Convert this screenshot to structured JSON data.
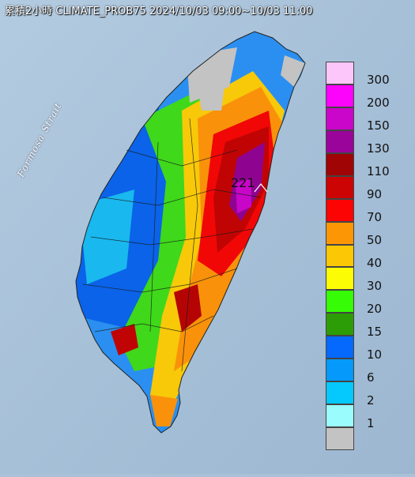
{
  "title": "累積2小時 CLIMATE_PROB75 2024/10/03 09:00~10/03 11:00",
  "strait_label": "Formosa Strait",
  "peak_value": "221",
  "legend": [
    {
      "label": "300",
      "color": "#fdc6fb"
    },
    {
      "label": "200",
      "color": "#fc04fb"
    },
    {
      "label": "150",
      "color": "#c906c9"
    },
    {
      "label": "130",
      "color": "#9a049a"
    },
    {
      "label": "110",
      "color": "#a00404"
    },
    {
      "label": "90",
      "color": "#cc0404"
    },
    {
      "label": "70",
      "color": "#fc0404"
    },
    {
      "label": "50",
      "color": "#fc9605"
    },
    {
      "label": "40",
      "color": "#fcc705"
    },
    {
      "label": "30",
      "color": "#fcfc05"
    },
    {
      "label": "20",
      "color": "#36fc05"
    },
    {
      "label": "15",
      "color": "#2d9d07"
    },
    {
      "label": "10",
      "color": "#0469fc"
    },
    {
      "label": "6",
      "color": "#0599fc"
    },
    {
      "label": "2",
      "color": "#05c8fc"
    },
    {
      "label": "1",
      "color": "#9afcfc"
    },
    {
      "label": "",
      "color": "#c3c3c3"
    }
  ]
}
